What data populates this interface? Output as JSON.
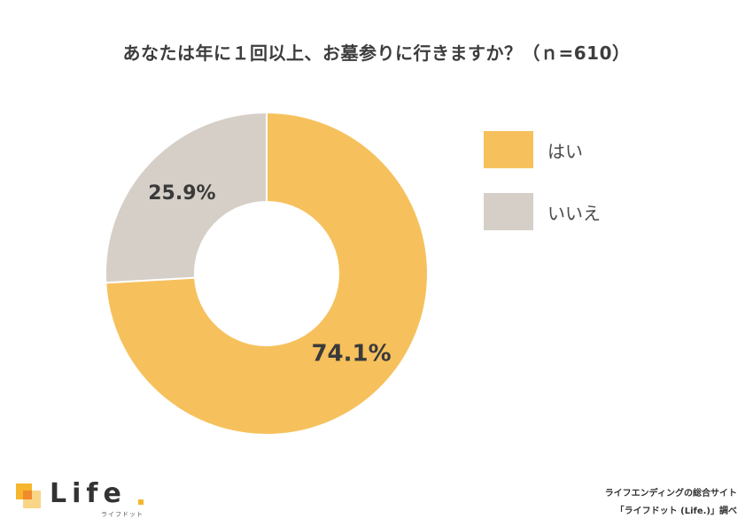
{
  "chart_data": {
    "type": "pie",
    "title": "あなたは年に１回以上、お墓参りに行きますか？（ｎ=610）",
    "categories": [
      "はい",
      "いいえ"
    ],
    "values": [
      74.1,
      25.9
    ],
    "data_labels": [
      "74.1%",
      "25.9%"
    ],
    "colors": [
      "#f6c15d",
      "#d5cfc7"
    ],
    "donut": true,
    "legend_position": "right"
  },
  "logo": {
    "word": "Life",
    "sub": "ライフドット"
  },
  "credit": {
    "line1": "ライフエンディングの総合サイト",
    "line2": "「ライフドット (Life.)」調べ"
  }
}
